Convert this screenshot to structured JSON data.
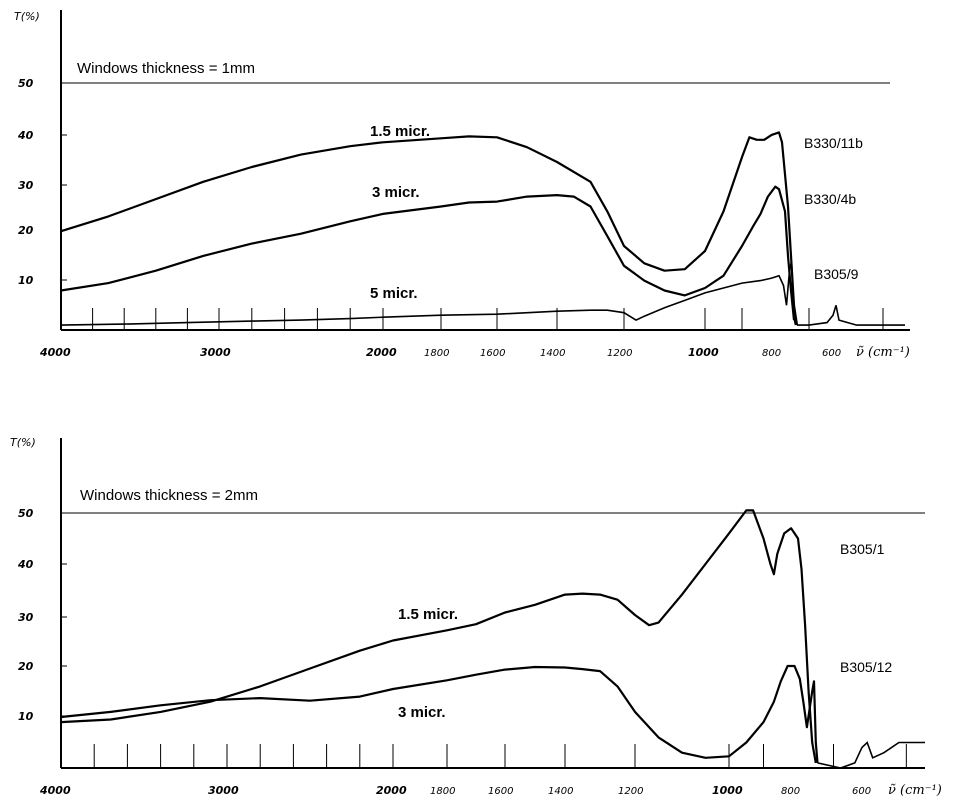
{
  "chart_data": [
    {
      "type": "line",
      "ylabel": "T(%)",
      "xunit": "cm⁻¹",
      "y_ticks": [
        "10",
        "20",
        "30",
        "40",
        "50"
      ],
      "x_ticks_major": [
        "4000",
        "3000",
        "2000",
        "1000"
      ],
      "x_ticks_minor": [
        "1800",
        "1600",
        "1400",
        "1200",
        "800",
        "600"
      ],
      "annotation": "Windows thickness = 1mm",
      "reference_line_y": 50,
      "xlim": [
        4000,
        450
      ],
      "ylim": [
        0,
        55
      ],
      "series": [
        {
          "name": "1.5 micr.",
          "sample": "B330/11b",
          "points": [
            [
              4000,
              20
            ],
            [
              3700,
              23
            ],
            [
              3400,
              26.5
            ],
            [
              3100,
              30
            ],
            [
              2800,
              33
            ],
            [
              2500,
              35.5
            ],
            [
              2200,
              37.2
            ],
            [
              2000,
              38
            ],
            [
              1800,
              38.8
            ],
            [
              1700,
              39.2
            ],
            [
              1600,
              39
            ],
            [
              1500,
              37
            ],
            [
              1400,
              34
            ],
            [
              1300,
              30
            ],
            [
              1250,
              24
            ],
            [
              1200,
              17
            ],
            [
              1150,
              13.5
            ],
            [
              1100,
              12
            ],
            [
              1050,
              12.3
            ],
            [
              1000,
              16
            ],
            [
              950,
              24
            ],
            [
              900,
              35
            ],
            [
              880,
              39
            ],
            [
              860,
              38.5
            ],
            [
              840,
              38.5
            ],
            [
              820,
              39.5
            ],
            [
              800,
              40
            ],
            [
              790,
              38
            ],
            [
              770,
              25
            ],
            [
              760,
              15
            ],
            [
              750,
              5
            ],
            [
              740,
              1
            ]
          ]
        },
        {
          "name": "3 micr.",
          "sample": "B330/4b",
          "points": [
            [
              4000,
              8
            ],
            [
              3700,
              9.5
            ],
            [
              3400,
              12
            ],
            [
              3100,
              15
            ],
            [
              2800,
              17.5
            ],
            [
              2500,
              19.5
            ],
            [
              2200,
              22
            ],
            [
              2000,
              23.5
            ],
            [
              1800,
              25
            ],
            [
              1700,
              25.8
            ],
            [
              1600,
              26
            ],
            [
              1500,
              27
            ],
            [
              1400,
              27.3
            ],
            [
              1350,
              27
            ],
            [
              1300,
              25
            ],
            [
              1250,
              19
            ],
            [
              1200,
              13
            ],
            [
              1150,
              10
            ],
            [
              1100,
              8
            ],
            [
              1050,
              7
            ],
            [
              1000,
              8.5
            ],
            [
              950,
              11
            ],
            [
              900,
              17
            ],
            [
              870,
              21
            ],
            [
              850,
              23.5
            ],
            [
              830,
              27
            ],
            [
              810,
              29
            ],
            [
              800,
              28.5
            ],
            [
              780,
              24
            ],
            [
              770,
              15
            ],
            [
              760,
              8
            ],
            [
              750,
              2
            ]
          ]
        },
        {
          "name": "5 micr.",
          "sample": "B305/9",
          "points": [
            [
              4000,
              1
            ],
            [
              3600,
              1.2
            ],
            [
              3200,
              1.5
            ],
            [
              2800,
              1.8
            ],
            [
              2500,
              2
            ],
            [
              2200,
              2.3
            ],
            [
              2000,
              2.6
            ],
            [
              1800,
              3
            ],
            [
              1600,
              3.2
            ],
            [
              1400,
              3.8
            ],
            [
              1300,
              4
            ],
            [
              1250,
              4
            ],
            [
              1200,
              3.5
            ],
            [
              1170,
              2
            ],
            [
              1150,
              2.8
            ],
            [
              1100,
              4.5
            ],
            [
              1050,
              6
            ],
            [
              1000,
              7.5
            ],
            [
              950,
              8.5
            ],
            [
              900,
              9.5
            ],
            [
              850,
              10
            ],
            [
              820,
              10.5
            ],
            [
              800,
              11
            ],
            [
              785,
              9
            ],
            [
              775,
              5
            ],
            [
              765,
              12
            ],
            [
              758,
              14
            ],
            [
              752,
              3
            ],
            [
              745,
              1
            ]
          ]
        }
      ]
    },
    {
      "type": "line",
      "ylabel": "T(%)",
      "xunit": "cm⁻¹",
      "y_ticks": [
        "10",
        "20",
        "30",
        "40",
        "50"
      ],
      "x_ticks_major": [
        "4000",
        "3000",
        "2000",
        "1000"
      ],
      "x_ticks_minor": [
        "1800",
        "1600",
        "1400",
        "1200",
        "800",
        "600"
      ],
      "annotation": "Windows thickness = 2mm",
      "reference_line_y": 50,
      "xlim": [
        4000,
        450
      ],
      "ylim": [
        0,
        55
      ],
      "series": [
        {
          "name": "1.5 micr.",
          "sample": "B305/1",
          "points": [
            [
              4000,
              9
            ],
            [
              3700,
              9.5
            ],
            [
              3400,
              11
            ],
            [
              3100,
              13
            ],
            [
              2800,
              16
            ],
            [
              2500,
              19.5
            ],
            [
              2200,
              23
            ],
            [
              2000,
              25
            ],
            [
              1800,
              27
            ],
            [
              1700,
              28.2
            ],
            [
              1600,
              30.5
            ],
            [
              1500,
              32
            ],
            [
              1400,
              34
            ],
            [
              1350,
              34.2
            ],
            [
              1300,
              34
            ],
            [
              1250,
              33
            ],
            [
              1200,
              30
            ],
            [
              1170,
              28
            ],
            [
              1150,
              28.5
            ],
            [
              1100,
              34
            ],
            [
              1050,
              40
            ],
            [
              1000,
              46
            ],
            [
              950,
              50.5
            ],
            [
              930,
              50.5
            ],
            [
              900,
              45
            ],
            [
              880,
              40
            ],
            [
              870,
              38
            ],
            [
              860,
              42
            ],
            [
              840,
              46
            ],
            [
              820,
              47
            ],
            [
              800,
              45
            ],
            [
              790,
              39
            ],
            [
              780,
              28
            ],
            [
              770,
              15
            ],
            [
              760,
              5
            ],
            [
              750,
              1
            ]
          ]
        },
        {
          "name": "3 micr.",
          "sample": "B305/12",
          "points": [
            [
              4000,
              10
            ],
            [
              3700,
              11
            ],
            [
              3400,
              12.3
            ],
            [
              3100,
              13.3
            ],
            [
              2800,
              13.7
            ],
            [
              2500,
              13.2
            ],
            [
              2200,
              14
            ],
            [
              2000,
              15.5
            ],
            [
              1800,
              17.2
            ],
            [
              1700,
              18.3
            ],
            [
              1600,
              19.3
            ],
            [
              1500,
              19.8
            ],
            [
              1400,
              19.7
            ],
            [
              1350,
              19.4
            ],
            [
              1300,
              19
            ],
            [
              1250,
              16
            ],
            [
              1200,
              11
            ],
            [
              1150,
              6
            ],
            [
              1100,
              3
            ],
            [
              1050,
              2
            ],
            [
              1000,
              2.3
            ],
            [
              950,
              5
            ],
            [
              900,
              9
            ],
            [
              870,
              13
            ],
            [
              850,
              17
            ],
            [
              830,
              20
            ],
            [
              810,
              20
            ],
            [
              795,
              17.5
            ],
            [
              785,
              13
            ],
            [
              775,
              8
            ],
            [
              760,
              15
            ],
            [
              755,
              17
            ],
            [
              750,
              5
            ],
            [
              745,
              1
            ]
          ]
        }
      ]
    }
  ]
}
